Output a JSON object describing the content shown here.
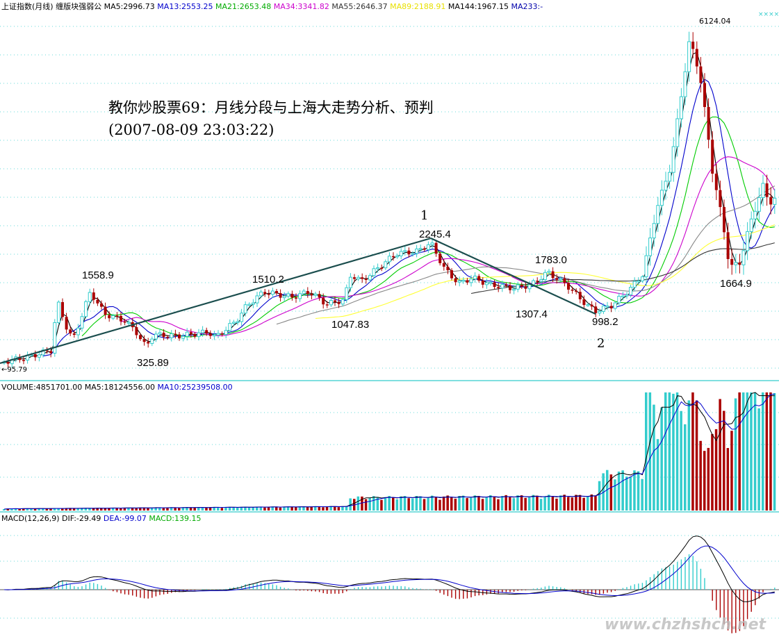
{
  "title": {
    "line1": "教你炒股票69：月线分段与上海大走势分析、预判",
    "line2": "(2007-08-09 23:03:22)"
  },
  "header": {
    "main": [
      {
        "text": "上证指数(月线) 缠版块强弱公",
        "color": "#000000"
      },
      {
        "text": "MA5:2996.73",
        "color": "#000000"
      },
      {
        "text": "MA13:2553.25",
        "color": "#0000cc"
      },
      {
        "text": "MA21:2653.48",
        "color": "#00aa00"
      },
      {
        "text": "MA34:3341.82",
        "color": "#cc00cc"
      },
      {
        "text": "MA55:2646.37",
        "color": "#333333"
      },
      {
        "text": "MA89:2188.91",
        "color": "#e8e000"
      },
      {
        "text": "MA144:1967.15",
        "color": "#000000"
      },
      {
        "text": "MA233:-",
        "color": "#0000aa"
      }
    ],
    "volume": [
      {
        "text": "VOLUME:4851701.00",
        "color": "#000000"
      },
      {
        "text": "MA5:18124556.00",
        "color": "#000000"
      },
      {
        "text": "MA10:25239508.00",
        "color": "#0000cc"
      }
    ],
    "macd": [
      {
        "text": "MACD(12,26,9)",
        "color": "#000000"
      },
      {
        "text": "DIF:-29.49",
        "color": "#000000"
      },
      {
        "text": "DEA:-99.07",
        "color": "#0000cc"
      },
      {
        "text": "MACD:139.15",
        "color": "#00aa00"
      }
    ]
  },
  "price_labels": {
    "low_start": "←95.79",
    "p1558": "1558.9",
    "p325": "325.89",
    "p1510": "1510.2",
    "p1047": "1047.83",
    "p2245": "2245.4",
    "p1783": "1783.0",
    "p1307": "1307.4",
    "p998": "998.2",
    "p6124": "6124.04",
    "p1664": "1664.9",
    "mark1": "1",
    "mark2": "2"
  },
  "watermark": "www.chzhshch.net",
  "colors": {
    "up": "#33cccc",
    "down": "#aa0000",
    "ma5": "#000000",
    "ma13": "#0000cc",
    "ma21": "#00cc00",
    "ma34": "#cc00cc",
    "ma55": "#888888",
    "ma89": "#ffff33",
    "ma144": "#333333",
    "trend": "#1a4d4d",
    "grid": "#33cccc",
    "divider": "#33cccc"
  },
  "chart_data": {
    "type": "line",
    "series": [
      {
        "name": "上证指数(月线)",
        "points": [
          {
            "label": "start-low",
            "value": 95.79
          },
          {
            "label": "high-a",
            "value": 1558.9
          },
          {
            "label": "low-a",
            "value": 325.89
          },
          {
            "label": "high-b",
            "value": 1510.2
          },
          {
            "label": "high-c",
            "value": 2245.4
          },
          {
            "label": "high-d",
            "value": 1783.0
          },
          {
            "label": "low-d",
            "value": 1307.4
          },
          {
            "label": "low-c",
            "value": 998.2
          },
          {
            "label": "peak",
            "value": 6124.04
          },
          {
            "label": "last-low",
            "value": 1664.9
          }
        ]
      }
    ],
    "ma_values": {
      "MA5": 2996.73,
      "MA13": 2553.25,
      "MA21": 2653.48,
      "MA34": 3341.82,
      "MA55": 2646.37,
      "MA89": 2188.91,
      "MA144": 1967.15
    },
    "ma89_support": 1047.83,
    "volume": {
      "VOLUME": 4851701.0,
      "MA5": 18124556.0,
      "MA10": 25239508.0
    },
    "macd": {
      "params": "12,26,9",
      "DIF": -29.49,
      "DEA": -99.07,
      "MACD": 139.15
    },
    "segments": [
      {
        "from": 95.79,
        "to": 2245.4
      },
      {
        "from": 2245.4,
        "to": 998.2
      }
    ]
  }
}
